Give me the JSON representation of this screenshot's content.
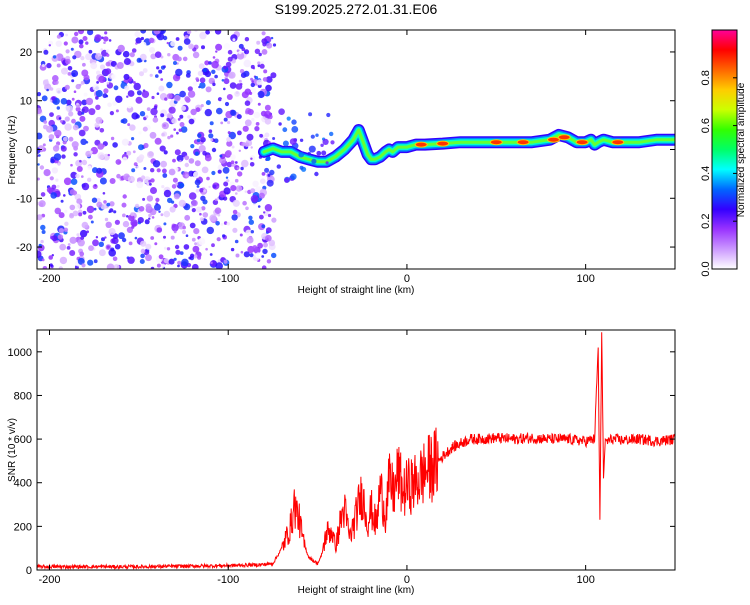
{
  "page": {
    "title": "S199.2025.272.01.31.E06"
  },
  "chart_data": [
    {
      "type": "heatmap",
      "title": "S199.2025.272.01.31.E06",
      "xlabel": "Height of straight line (km)",
      "ylabel": "Frequency (Hz)",
      "xlim": [
        -207,
        150
      ],
      "ylim": [
        -24.5,
        24.5
      ],
      "x_ticks": [
        -200,
        -100,
        0,
        100
      ],
      "y_ticks": [
        -20,
        -10,
        0,
        10,
        20
      ],
      "colorbar": {
        "label": "Normalized spectral amplitude",
        "range": [
          0,
          1
        ],
        "ticks": [
          "0.0",
          "0.2",
          "0.4",
          "0.6",
          "0.8"
        ],
        "colormap": [
          "#ffffff",
          "#cc99ff",
          "#9933ff",
          "#3300ff",
          "#0066ff",
          "#00ffff",
          "#00ff66",
          "#33ff00",
          "#ccff00",
          "#ffcc00",
          "#ff6600",
          "#ff0000",
          "#ff0099"
        ]
      },
      "noise_region_x": [
        -207,
        -80
      ],
      "ridge": {
        "x": [
          -80,
          -75,
          -70,
          -65,
          -60,
          -55,
          -50,
          -45,
          -40,
          -35,
          -30,
          -27,
          -25,
          -22,
          -20,
          -18,
          -15,
          -12,
          -10,
          -8,
          -5,
          0,
          5,
          10,
          20,
          30,
          40,
          50,
          60,
          70,
          80,
          85,
          90,
          95,
          100,
          103,
          105,
          107,
          110,
          115,
          120,
          130,
          140,
          150
        ],
        "freq": [
          -0.5,
          0.2,
          -0.5,
          -0.5,
          -1.5,
          -2,
          -2.5,
          -2.5,
          -1.5,
          0,
          2,
          4,
          2,
          -1,
          -2,
          -2,
          -1.5,
          -0.5,
          0,
          -0.5,
          0.5,
          0.5,
          1,
          1,
          1.2,
          1.5,
          1.5,
          1.5,
          1.5,
          1.5,
          2,
          3,
          2.5,
          1.5,
          1.5,
          2,
          1,
          1.5,
          2,
          1.5,
          1.5,
          1.5,
          2,
          2
        ]
      }
    },
    {
      "type": "line",
      "xlabel": "Height of straight line (km)",
      "ylabel": "SNR (10 * v/v)",
      "xlim": [
        -207,
        150
      ],
      "ylim": [
        0,
        1100
      ],
      "x_ticks": [
        -200,
        -100,
        0,
        100
      ],
      "y_ticks": [
        0,
        200,
        400,
        600,
        800,
        1000
      ],
      "color": "#ff0000",
      "series": [
        {
          "name": "SNR",
          "x": [
            -207,
            -150,
            -100,
            -80,
            -75,
            -70,
            -65,
            -63,
            -60,
            -58,
            -55,
            -52,
            -50,
            -48,
            -45,
            -42,
            -40,
            -37,
            -35,
            -32,
            -30,
            -27,
            -25,
            -22,
            -20,
            -17,
            -15,
            -12,
            -10,
            -7,
            -5,
            -2,
            0,
            5,
            10,
            15,
            20,
            25,
            30,
            35,
            40,
            50,
            60,
            70,
            80,
            90,
            100,
            105,
            107,
            108,
            109,
            110,
            111,
            112,
            115,
            120,
            130,
            140,
            150
          ],
          "y": [
            15,
            15,
            20,
            25,
            30,
            100,
            200,
            300,
            220,
            130,
            60,
            40,
            30,
            60,
            170,
            180,
            100,
            230,
            280,
            150,
            200,
            300,
            350,
            220,
            280,
            200,
            380,
            250,
            400,
            350,
            450,
            350,
            380,
            400,
            450,
            480,
            520,
            560,
            580,
            600,
            600,
            605,
            600,
            605,
            600,
            600,
            590,
            600,
            1020,
            230,
            1090,
            420,
            600,
            590,
            600,
            595,
            600,
            590,
            600
          ]
        }
      ]
    }
  ]
}
